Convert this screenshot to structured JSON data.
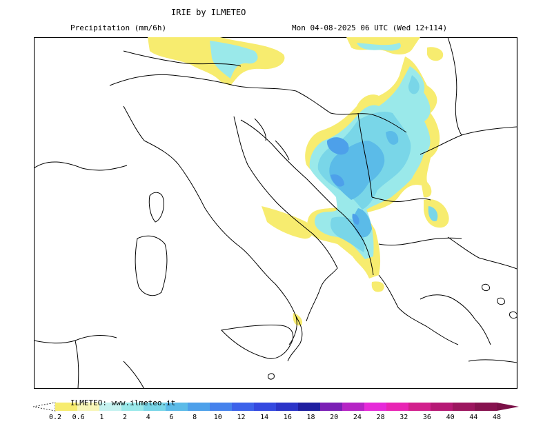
{
  "header": {
    "title": "IRIE by ILMETEO",
    "subtitle": "Precipitation (mm/6h)",
    "valid_time": "Mon 04-08-2025 06 UTC (Wed 12+114)"
  },
  "colorbar": {
    "credit": "ILMETEO: www.ilmeteo.it",
    "ticks": [
      "0.2",
      "0.6",
      "1",
      "2",
      "4",
      "6",
      "8",
      "10",
      "12",
      "14",
      "16",
      "18",
      "20",
      "24",
      "28",
      "32",
      "36",
      "40",
      "44",
      "48"
    ],
    "colors": [
      "#f7ec6f",
      "#f8f6b8",
      "#c6f2f0",
      "#9ae9ea",
      "#79d6e8",
      "#5bbbe8",
      "#4da0ea",
      "#4582ec",
      "#3c62ea",
      "#3449e0",
      "#2b34c8",
      "#1f1ea0",
      "#7b1fb5",
      "#b524c5",
      "#e62ad9",
      "#e825b4",
      "#d2208d",
      "#b61975",
      "#9c165f",
      "#86124f"
    ],
    "cap_color": "#7a1047"
  },
  "map": {
    "region": "Italy and Balkans",
    "land_color": "#ffffff",
    "border_color": "#000000"
  }
}
